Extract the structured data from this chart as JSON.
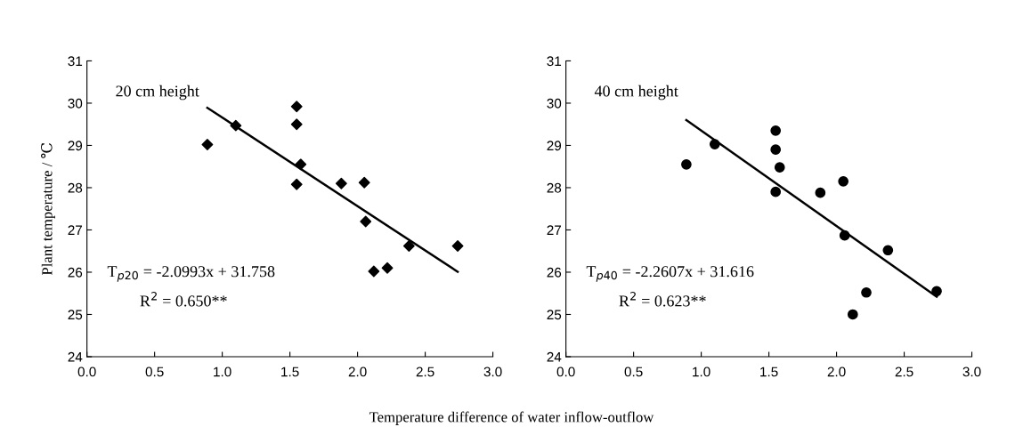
{
  "chart_data": [
    {
      "type": "scatter",
      "ylabel": "Plant temperature / ℃",
      "xlabel": "Temperature difference of water inflow-outflow",
      "annotations": [
        "20 cm height",
        "T$_{p20}$ = -2.0993x + 31.758",
        "R$^{2}$ = 0.650**"
      ],
      "xlim": [
        0,
        3
      ],
      "xticks": [
        {
          "value": 0,
          "label": "0.0"
        },
        0.5,
        {
          "value": 1,
          "label": "1.0"
        },
        1.5,
        {
          "value": 2,
          "label": "2.0"
        },
        2.5,
        {
          "value": 3,
          "label": "3.0"
        }
      ],
      "ylim": [
        24,
        31
      ],
      "yticks": [
        24,
        25,
        26,
        27,
        28,
        29,
        30,
        31
      ],
      "grid": false,
      "legend": false,
      "series": [
        {
          "marker": "diamond",
          "color": "#000000",
          "x": [
            0.89,
            1.1,
            1.55,
            1.55,
            1.58,
            1.55,
            1.88,
            2.05,
            2.06,
            2.12,
            2.22,
            2.38,
            2.74
          ],
          "values": [
            29.02,
            29.47,
            29.92,
            29.5,
            28.55,
            28.08,
            28.1,
            28.12,
            27.2,
            26.02,
            26.1,
            26.62,
            26.62
          ]
        },
        {
          "type": "line",
          "marker": "none",
          "line_style": "solid",
          "color": "#000000",
          "x": [
            0.89,
            2.74
          ],
          "values": [
            29.89,
            26.01
          ]
        }
      ]
    },
    {
      "type": "scatter",
      "annotations": [
        "40 cm height",
        "T$_{p40}$ = -2.2607x + 31.616",
        "R$^{2}$ = 0.623**"
      ],
      "xlim": [
        0,
        3
      ],
      "xticks": [
        {
          "value": 0,
          "label": "0.0"
        },
        0.5,
        {
          "value": 1,
          "label": "1.0"
        },
        1.5,
        {
          "value": 2,
          "label": "2.0"
        },
        2.5,
        {
          "value": 3,
          "label": "3.0"
        }
      ],
      "ylim": [
        24,
        31
      ],
      "yticks": [
        24,
        25,
        26,
        27,
        28,
        29,
        30,
        31
      ],
      "grid": false,
      "legend": false,
      "series": [
        {
          "marker": "circle",
          "color": "#000000",
          "x": [
            0.89,
            1.1,
            1.55,
            1.55,
            1.58,
            1.55,
            1.88,
            2.05,
            2.06,
            2.12,
            2.22,
            2.38,
            2.74
          ],
          "values": [
            28.55,
            29.03,
            29.35,
            28.9,
            28.48,
            27.9,
            27.88,
            28.15,
            26.87,
            25.0,
            25.52,
            26.52,
            25.55
          ]
        },
        {
          "type": "line",
          "marker": "none",
          "line_style": "solid",
          "color": "#000000",
          "x": [
            0.89,
            2.74
          ],
          "values": [
            29.6,
            25.42
          ]
        }
      ]
    }
  ]
}
